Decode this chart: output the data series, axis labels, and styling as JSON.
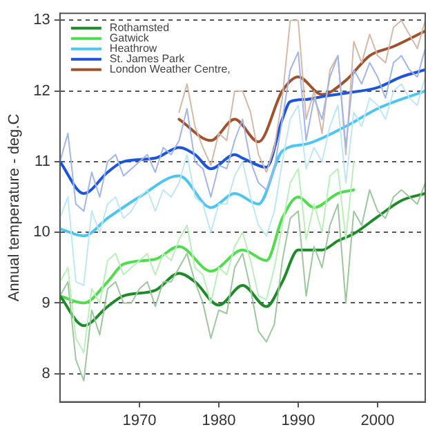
{
  "chart_data": {
    "type": "line",
    "ylabel": "Annual temperature - deg.C",
    "xlim": [
      1960,
      2006
    ],
    "ylim": [
      7.6,
      13.1
    ],
    "xticks": [
      1970,
      1980,
      1990,
      2000
    ],
    "yticks": [
      8,
      9,
      10,
      11,
      12,
      13
    ],
    "grid": "y",
    "legend": "top left",
    "marker": "none",
    "series": [
      {
        "color": "#9cc79c",
        "x": [
          1960,
          1961,
          1962,
          1963,
          1964,
          1965,
          1966,
          1967,
          1968,
          1969,
          1970,
          1971,
          1972,
          1973,
          1974,
          1975,
          1976,
          1977,
          1978,
          1979,
          1980,
          1981,
          1982,
          1983,
          1984,
          1985,
          1986,
          1987,
          1988,
          1989,
          1990,
          1991,
          1992,
          1993,
          1994,
          1995,
          1996,
          1997,
          1998,
          1999,
          2000,
          2001,
          2002,
          2003,
          2004,
          2005,
          2006
        ],
        "values": [
          9.1,
          9.3,
          8.2,
          7.9,
          8.9,
          8.55,
          9.2,
          9.3,
          9.0,
          9.0,
          9.2,
          9.3,
          8.95,
          9.3,
          9.3,
          9.5,
          9.7,
          9.3,
          9.0,
          8.5,
          8.9,
          8.85,
          9.5,
          9.7,
          9.2,
          8.6,
          8.45,
          8.7,
          9.6,
          10.2,
          10.3,
          9.1,
          9.8,
          9.5,
          10.1,
          10.4,
          9.0,
          10.3,
          10.1,
          10.6,
          10.3,
          10.2,
          10.5,
          10.6,
          10.5,
          10.4,
          10.7
        ]
      },
      {
        "color": "#b8f0b8",
        "x": [
          1960,
          1961,
          1962,
          1963,
          1964,
          1965,
          1966,
          1967,
          1968,
          1969,
          1970,
          1971,
          1972,
          1973,
          1974,
          1975,
          1976,
          1977,
          1978,
          1979,
          1980,
          1981,
          1982,
          1983,
          1984,
          1985,
          1986,
          1987,
          1988,
          1989,
          1990,
          1991,
          1992,
          1993,
          1994,
          1995,
          1996,
          1997
        ],
        "values": [
          9.3,
          9.5,
          8.5,
          8.3,
          9.2,
          9.0,
          9.6,
          9.7,
          9.4,
          9.5,
          9.6,
          9.7,
          9.4,
          9.7,
          9.6,
          9.9,
          10.1,
          9.5,
          9.4,
          9.0,
          9.5,
          9.4,
          9.8,
          10.0,
          9.6,
          9.1,
          9.05,
          9.5,
          10.1,
          10.7,
          10.9,
          9.9,
          10.4,
          10.0,
          10.8,
          10.9,
          9.9,
          11.0
        ]
      },
      {
        "color": "#bde6f7",
        "x": [
          1960,
          1961,
          1962,
          1963,
          1964,
          1965,
          1966,
          1967,
          1968,
          1969,
          1970,
          1971,
          1972,
          1973,
          1974,
          1975,
          1976,
          1977,
          1978,
          1979,
          1980,
          1981,
          1982,
          1983,
          1984,
          1985,
          1986,
          1987,
          1988,
          1989,
          1990,
          1991,
          1992,
          1993,
          1994,
          1995,
          1996,
          1997,
          1998,
          1999,
          2000,
          2001,
          2002,
          2003,
          2004,
          2005,
          2006
        ],
        "values": [
          10.2,
          10.5,
          9.3,
          9.25,
          10.3,
          10.0,
          10.4,
          10.5,
          10.2,
          10.3,
          10.5,
          10.6,
          10.3,
          10.6,
          10.5,
          10.7,
          11.1,
          10.5,
          10.4,
          10.0,
          10.4,
          10.4,
          10.8,
          11.0,
          10.5,
          10.1,
          9.95,
          10.3,
          11.0,
          11.6,
          11.8,
          10.9,
          11.2,
          11.0,
          11.5,
          11.8,
          10.7,
          11.7,
          11.5,
          11.9,
          11.8,
          11.6,
          12.0,
          12.1,
          11.9,
          11.8,
          12.2
        ]
      },
      {
        "color": "#9fb5ec",
        "x": [
          1960,
          1961,
          1962,
          1963,
          1964,
          1965,
          1966,
          1967,
          1968,
          1969,
          1970,
          1971,
          1972,
          1973,
          1974,
          1975,
          1976,
          1977,
          1978,
          1979,
          1980,
          1981,
          1982,
          1983,
          1984,
          1985,
          1986,
          1987,
          1988,
          1989,
          1990,
          1991,
          1992,
          1993,
          1994,
          1995,
          1996,
          1997,
          1998,
          1999,
          2000,
          2001,
          2002,
          2003,
          2004,
          2005,
          2006
        ],
        "values": [
          11.0,
          11.4,
          10.4,
          10.3,
          10.85,
          10.5,
          11.0,
          11.1,
          10.8,
          10.9,
          11.0,
          11.1,
          10.85,
          11.2,
          11.1,
          11.3,
          11.75,
          11.0,
          10.9,
          10.5,
          10.95,
          10.9,
          11.3,
          11.6,
          11.0,
          10.7,
          10.6,
          10.9,
          11.6,
          12.3,
          12.55,
          11.3,
          11.9,
          11.6,
          12.2,
          12.5,
          11.2,
          12.3,
          12.1,
          12.4,
          12.2,
          11.9,
          12.4,
          12.5,
          12.3,
          12.2,
          12.6
        ]
      },
      {
        "color": "#d4b8a8",
        "x": [
          1975,
          1976,
          1977,
          1978,
          1979,
          1980,
          1981,
          1982,
          1983,
          1984,
          1985,
          1986,
          1987,
          1988,
          1989,
          1990,
          1991,
          1992,
          1993,
          1994,
          1995,
          1996,
          1997,
          1998,
          1999,
          2000,
          2001,
          2002,
          2003,
          2004,
          2005,
          2006
        ],
        "values": [
          11.7,
          12.1,
          11.5,
          11.2,
          10.95,
          11.4,
          11.3,
          12.0,
          12.0,
          11.7,
          11.1,
          10.85,
          11.2,
          11.9,
          13.0,
          13.0,
          11.6,
          12.0,
          11.4,
          12.3,
          12.5,
          11.1,
          12.7,
          12.4,
          12.8,
          12.5,
          12.4,
          12.9,
          13.0,
          12.8,
          12.6,
          13.0
        ]
      },
      {
        "name": "Rothamsted",
        "color": "#1f8a2a",
        "x": [
          1960,
          1963,
          1966,
          1968,
          1972,
          1975,
          1977,
          1980,
          1983,
          1986,
          1988,
          1990,
          1993,
          1995,
          1997,
          2000,
          2003,
          2006
        ],
        "values": [
          9.1,
          8.68,
          8.95,
          9.1,
          9.18,
          9.42,
          9.3,
          8.97,
          9.25,
          8.95,
          9.3,
          9.75,
          9.75,
          9.88,
          9.98,
          10.22,
          10.45,
          10.55
        ]
      },
      {
        "name": "Gatwick",
        "color": "#4fdc4f",
        "x": [
          1960,
          1963,
          1966,
          1968,
          1972,
          1975,
          1979,
          1983,
          1986,
          1988,
          1990,
          1992,
          1995,
          1997
        ],
        "values": [
          9.1,
          9.0,
          9.3,
          9.55,
          9.62,
          9.8,
          9.45,
          9.75,
          9.6,
          10.2,
          10.5,
          10.35,
          10.55,
          10.6
        ]
      },
      {
        "name": "Heathrow",
        "color": "#4cc6f0",
        "x": [
          1960,
          1963,
          1966,
          1970,
          1975,
          1979,
          1982,
          1985,
          1988,
          1991,
          1996,
          2000,
          2006
        ],
        "values": [
          10.05,
          9.95,
          10.2,
          10.5,
          10.8,
          10.35,
          10.55,
          10.4,
          11.15,
          11.25,
          11.5,
          11.75,
          12.0
        ]
      },
      {
        "name": "St. James Park",
        "color": "#1c55d8",
        "x": [
          1960,
          1963,
          1966,
          1968,
          1972,
          1975,
          1977,
          1979,
          1982,
          1983,
          1986,
          1988,
          1989,
          1991,
          1993,
          1996,
          2000,
          2003,
          2006
        ],
        "values": [
          11.0,
          10.55,
          10.85,
          11.0,
          11.05,
          11.2,
          11.1,
          10.9,
          11.1,
          11.05,
          10.92,
          11.6,
          11.85,
          11.88,
          11.92,
          11.97,
          12.05,
          12.2,
          12.3
        ]
      },
      {
        "name": "London Weather Centre,",
        "color": "#a0522d",
        "x": [
          1975,
          1979,
          1982,
          1985,
          1988,
          1990,
          1993,
          1996,
          1999,
          2002,
          2006
        ],
        "values": [
          11.6,
          11.3,
          11.6,
          11.28,
          12.0,
          12.2,
          11.95,
          12.15,
          12.5,
          12.63,
          12.85
        ]
      }
    ]
  }
}
